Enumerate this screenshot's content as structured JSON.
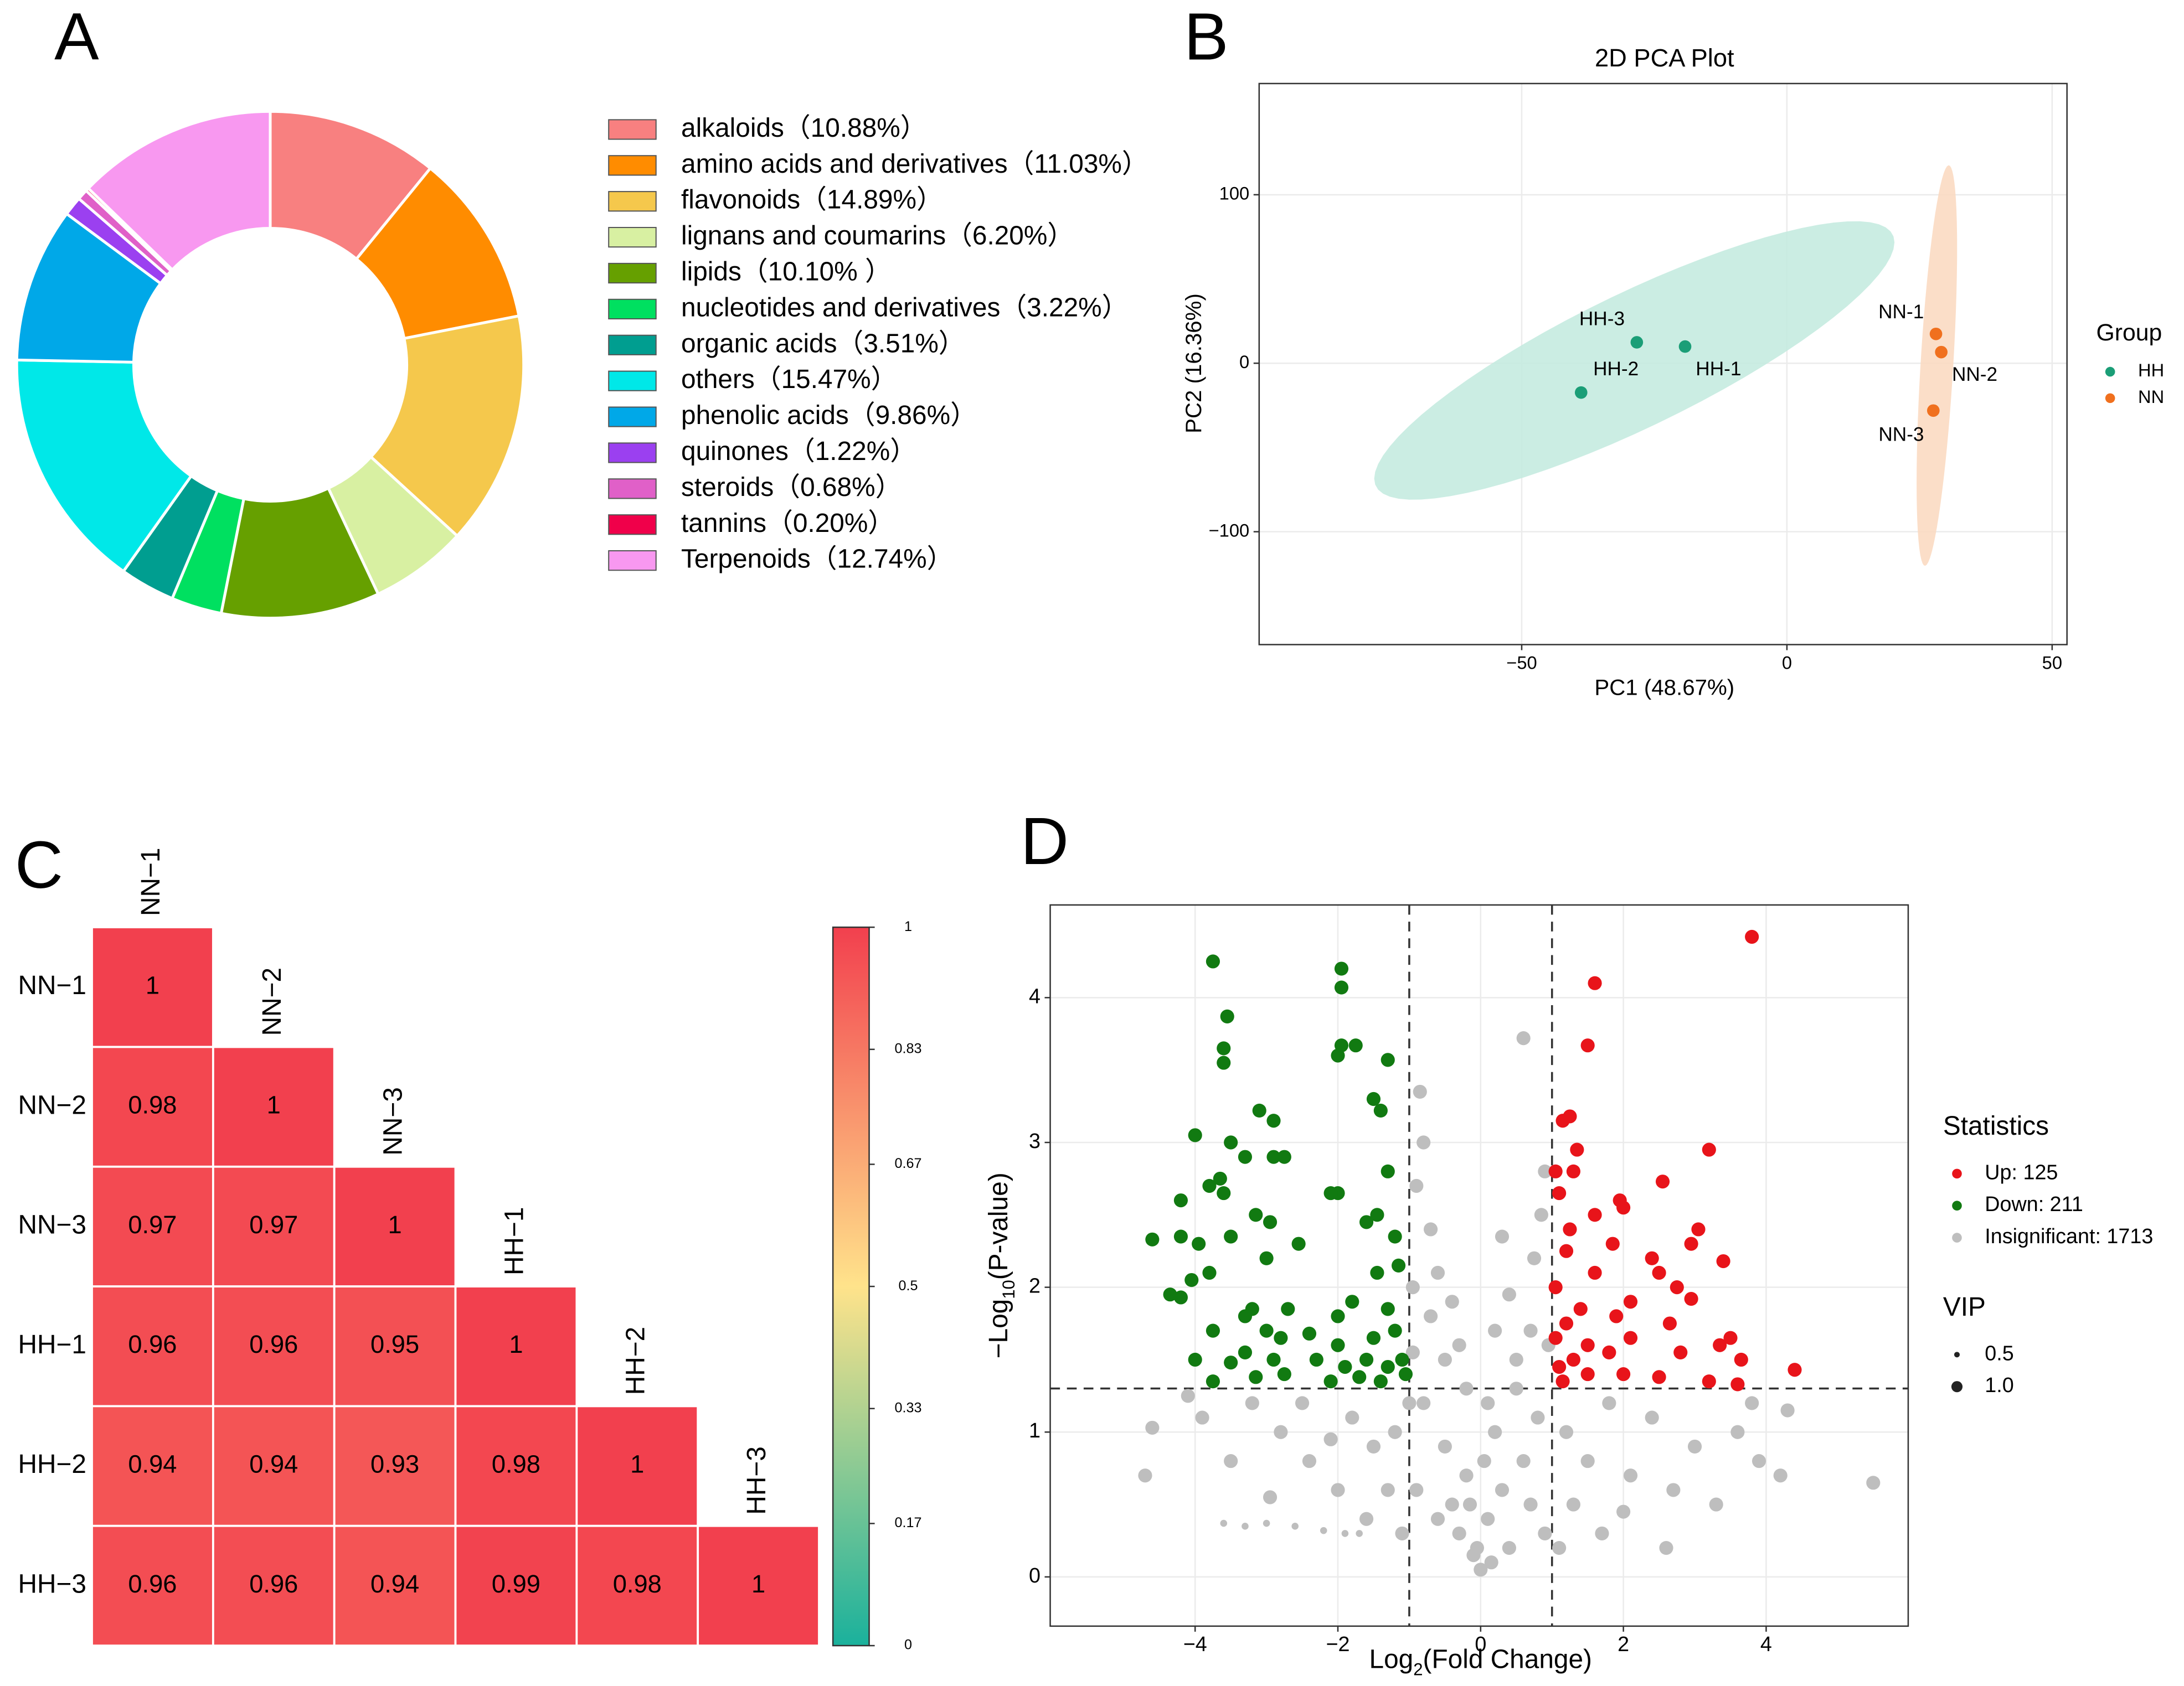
{
  "chart_data": [
    {
      "type": "pie",
      "panel_label": "A",
      "hole": true,
      "categories": [
        "alkaloids",
        "amino acids and derivatives",
        "flavonoids",
        "lignans and coumarins",
        "lipids",
        "nucleotides and derivatives",
        "organic acids",
        "others",
        "phenolic acids",
        "quinones",
        "steroids",
        "tannins",
        "Terpenoids"
      ],
      "values": [
        10.88,
        11.03,
        14.89,
        6.2,
        10.1,
        3.22,
        3.51,
        15.47,
        9.86,
        1.22,
        0.68,
        0.2,
        12.74
      ],
      "value_labels": [
        "（10.88%）",
        "（11.03%）",
        "（14.89%）",
        "（6.20%）",
        "（10.10% ）",
        "（3.22%）",
        "（3.51%）",
        "（15.47%）",
        "（9.86%）",
        "（1.22%）",
        "（0.68%）",
        "（0.20%）",
        "（12.74%）"
      ],
      "colors": [
        "#F88080",
        "#FF8C00",
        "#F5C84C",
        "#D8F0A2",
        "#66A000",
        "#00E060",
        "#009E90",
        "#00E8E8",
        "#00A8E8",
        "#9B40F0",
        "#E060C8",
        "#F0004A",
        "#F898F0"
      ]
    },
    {
      "type": "scatter",
      "panel_label": "B",
      "title": "2D PCA Plot",
      "xlabel": "PC1 (48.67%)",
      "ylabel": "PC2 (16.36%)",
      "xlim": [
        -99.5,
        52.8
      ],
      "ylim": [
        -167,
        166
      ],
      "xticks": [
        {
          "value": -50,
          "label": "−50"
        },
        0,
        50
      ],
      "yticks": [
        {
          "value": -100,
          "label": "−100"
        },
        0,
        100
      ],
      "grid": true,
      "ellipse": true,
      "legend_title": "Group",
      "series": [
        {
          "name": "HH",
          "color": "#1B9E77",
          "ellipse_color": "#C5EBE0",
          "labels": [
            "HH-1",
            "HH-2",
            "HH-3"
          ],
          "x": [
            -19.2,
            -38.8,
            -28.3
          ],
          "y": [
            9.9,
            -17.4,
            12.4
          ]
        },
        {
          "name": "NN",
          "color": "#F0701E",
          "ellipse_color": "#FBDAC2",
          "labels": [
            "NN-1",
            "NN-2",
            "NN-3"
          ],
          "x": [
            28.1,
            29.1,
            27.6
          ],
          "y": [
            17.4,
            6.6,
            -28.1
          ]
        }
      ]
    },
    {
      "type": "heatmap",
      "panel_label": "C",
      "labels": [
        "NN−1",
        "NN−2",
        "NN−3",
        "HH−1",
        "HH−2",
        "HH−3"
      ],
      "values": [
        [
          1
        ],
        [
          0.98,
          1
        ],
        [
          0.97,
          0.97,
          1
        ],
        [
          0.96,
          0.96,
          0.95,
          1
        ],
        [
          0.94,
          0.94,
          0.93,
          0.98,
          1
        ],
        [
          0.96,
          0.96,
          0.94,
          0.99,
          0.98,
          1
        ]
      ],
      "clim": [
        0,
        1
      ],
      "colors": [
        "#1AB19C",
        "#FFE38B",
        "#F2404E"
      ],
      "cticks": [
        0,
        0.17,
        0.33,
        0.5,
        0.67,
        0.83,
        1
      ]
    },
    {
      "type": "scatter",
      "panel_label": "D",
      "xlabel": [
        "Log",
        "2",
        "(Fold Change)"
      ],
      "ylabel": [
        "−Log",
        "10",
        "(P-value)"
      ],
      "xlim": [
        -6.03,
        5.99
      ],
      "ylim": [
        -0.34,
        4.64
      ],
      "xticks": [
        {
          "value": -4,
          "label": "−4"
        },
        {
          "value": -2,
          "label": "−2"
        },
        0,
        2,
        4
      ],
      "yticks": [
        0,
        1,
        2,
        3,
        4
      ],
      "grid": true,
      "vlines": [
        -1,
        1
      ],
      "hlines": [
        1.301
      ],
      "legend_title": "Statistics",
      "size_legend": {
        "title": "VIP",
        "values": [
          0.5,
          {
            "value": 1,
            "label": "1.0"
          }
        ]
      },
      "series": [
        {
          "name": "Up: 125",
          "color": "#E8141A",
          "x": [
            3.8,
            1.6,
            1.5,
            1.25,
            1.15,
            3.2,
            1.35,
            1.05,
            2.55,
            1.3,
            1.1,
            1.95,
            2.0,
            1.6,
            1.25,
            3.05,
            2.95,
            1.85,
            1.2,
            2.4,
            3.4,
            2.5,
            1.6,
            2.75,
            1.05,
            2.95,
            2.1,
            1.4,
            1.9,
            2.65,
            1.2,
            3.5,
            3.35,
            2.1,
            1.5,
            1.05,
            2.8,
            1.8,
            1.3,
            4.4,
            3.65,
            1.1,
            1.5,
            2.0,
            3.2,
            3.6,
            2.5,
            1.15
          ],
          "y": [
            4.42,
            4.1,
            3.67,
            3.18,
            3.15,
            2.95,
            2.95,
            2.8,
            2.73,
            2.8,
            2.65,
            2.6,
            2.55,
            2.5,
            2.4,
            2.4,
            2.3,
            2.3,
            2.25,
            2.2,
            2.18,
            2.1,
            2.1,
            2.0,
            2.0,
            1.92,
            1.9,
            1.85,
            1.8,
            1.75,
            1.75,
            1.65,
            1.6,
            1.65,
            1.6,
            1.65,
            1.55,
            1.55,
            1.5,
            1.43,
            1.5,
            1.45,
            1.4,
            1.4,
            1.35,
            1.33,
            1.38,
            1.35
          ]
        },
        {
          "name": "Down: 211",
          "color": "#117A11",
          "x": [
            -3.75,
            -1.95,
            -1.95,
            -3.55,
            -3.6,
            -3.6,
            -1.95,
            -1.75,
            -2.0,
            -1.3,
            -3.1,
            -2.9,
            -1.5,
            -1.4,
            -4.0,
            -3.5,
            -3.3,
            -2.9,
            -2.75,
            -3.65,
            -3.8,
            -3.6,
            -2.0,
            -2.1,
            -4.2,
            -4.6,
            -3.15,
            -2.95,
            -1.3,
            -1.45,
            -1.6,
            -3.5,
            -3.95,
            -4.2,
            -1.2,
            -2.55,
            -3.0,
            -3.8,
            -4.05,
            -1.45,
            -1.15,
            -4.35,
            -4.2,
            -3.2,
            -3.3,
            -2.7,
            -2.0,
            -1.3,
            -1.8,
            -3.75,
            -3.0,
            -2.8,
            -2.4,
            -2.0,
            -1.5,
            -1.2,
            -4.0,
            -3.5,
            -3.3,
            -2.9,
            -2.3,
            -1.9,
            -1.6,
            -1.3,
            -1.1,
            -3.75,
            -3.15,
            -2.75,
            -2.1,
            -1.7,
            -1.4,
            -1.05
          ],
          "y": [
            4.25,
            4.2,
            4.07,
            3.87,
            3.65,
            3.55,
            3.67,
            3.67,
            3.6,
            3.57,
            3.22,
            3.15,
            3.3,
            3.22,
            3.05,
            3.0,
            2.9,
            2.9,
            2.9,
            2.75,
            2.7,
            2.65,
            2.65,
            2.65,
            2.6,
            2.33,
            2.5,
            2.45,
            2.8,
            2.5,
            2.45,
            2.35,
            2.3,
            2.35,
            2.35,
            2.3,
            2.2,
            2.1,
            2.05,
            2.1,
            2.15,
            1.95,
            1.93,
            1.85,
            1.8,
            1.85,
            1.8,
            1.85,
            1.9,
            1.7,
            1.7,
            1.65,
            1.68,
            1.6,
            1.65,
            1.7,
            1.5,
            1.48,
            1.55,
            1.5,
            1.5,
            1.45,
            1.5,
            1.45,
            1.5,
            1.35,
            1.38,
            1.4,
            1.35,
            1.38,
            1.35,
            1.4
          ]
        },
        {
          "name": "Insignificant: 1713",
          "color": "#BEBEBE",
          "x": [
            -3.6,
            -3.3,
            -3.0,
            -2.6,
            -2.2,
            -1.9,
            -1.7,
            -4.7,
            -4.6,
            -3.9,
            -3.5,
            -2.95,
            -2.5,
            -2.1,
            -1.8,
            -1.5,
            -1.2,
            -0.9,
            -0.8,
            -0.6,
            -0.5,
            -0.3,
            -0.2,
            -0.1,
            0,
            0.1,
            0.2,
            0.3,
            0.4,
            0.5,
            0.6,
            0.7,
            0.8,
            0.9,
            0.6,
            0.9,
            0.85,
            0.75,
            -0.85,
            -0.8,
            -0.9,
            -0.7,
            -0.6,
            -0.4,
            -0.3,
            0.2,
            0.4,
            0.3,
            0.5,
            -0.2,
            0.1,
            -0.5,
            -0.7,
            0.7,
            0.95,
            -0.95,
            -0.95,
            1.2,
            1.5,
            1.8,
            2.1,
            2.4,
            2.7,
            3.0,
            3.3,
            3.6,
            3.9,
            4.2,
            3.8,
            4.3,
            5.5,
            1.3,
            1.7,
            2.0,
            2.6,
            1.1,
            -1.1,
            -1.3,
            -1.6,
            -2.0,
            -2.4,
            -2.8,
            -3.2,
            -4.1,
            -1.0,
            -0.4,
            0.05,
            -0.05,
            0.15,
            -0.15
          ],
          "y": [
            0.37,
            0.35,
            0.37,
            0.35,
            0.32,
            0.3,
            0.3,
            0.7,
            1.03,
            1.1,
            0.8,
            0.55,
            1.2,
            0.95,
            1.1,
            0.9,
            1.0,
            0.6,
            1.2,
            0.4,
            0.9,
            0.3,
            0.7,
            0.15,
            0.05,
            0.4,
            1.0,
            0.6,
            0.2,
            1.3,
            0.8,
            0.5,
            1.1,
            0.3,
            3.72,
            2.8,
            2.5,
            2.2,
            3.35,
            3.0,
            2.7,
            2.4,
            2.1,
            1.9,
            1.6,
            1.7,
            1.95,
            2.35,
            1.5,
            1.3,
            1.2,
            1.5,
            1.8,
            1.7,
            1.6,
            2.0,
            1.55,
            1.0,
            0.8,
            1.2,
            0.7,
            1.1,
            0.6,
            0.9,
            0.5,
            1.0,
            0.8,
            0.7,
            1.2,
            1.15,
            0.65,
            0.5,
            0.3,
            0.45,
            0.2,
            0.2,
            0.3,
            0.6,
            0.4,
            0.6,
            0.8,
            1.0,
            1.2,
            1.25,
            1.2,
            0.5,
            0.8,
            0.2,
            0.1,
            0.5
          ],
          "sizes": [
            0.5,
            0.5,
            0.5,
            0.5,
            0.5,
            0.5,
            0.5,
            1,
            1,
            1,
            1,
            1,
            1,
            1,
            1,
            1,
            1,
            1,
            1,
            1,
            1,
            1,
            1,
            1,
            1,
            1,
            1,
            1,
            1,
            1,
            1,
            1,
            1,
            1,
            1,
            1,
            1,
            1,
            1,
            1,
            1,
            1,
            1,
            1,
            1,
            1,
            1,
            1,
            1,
            1,
            1,
            1,
            1,
            1,
            1,
            1,
            1,
            1,
            1,
            1,
            1,
            1,
            1,
            1,
            1,
            1,
            1,
            1,
            1,
            1,
            1,
            1,
            1,
            1,
            1,
            1,
            1,
            1,
            1,
            1,
            1,
            1,
            1,
            1,
            1,
            1,
            1,
            1,
            1,
            1
          ]
        }
      ]
    }
  ]
}
